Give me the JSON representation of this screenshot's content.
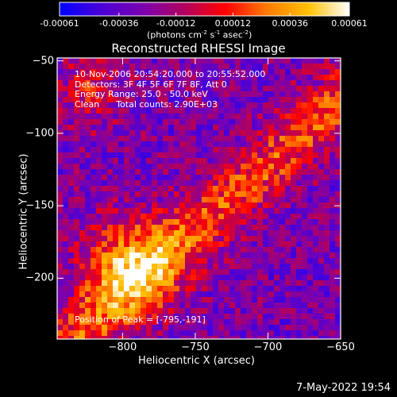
{
  "chart_data": {
    "type": "heatmap",
    "title": "Reconstructed RHESSI Image",
    "xlabel": "Heliocentric X (arcsec)",
    "ylabel": "Heliocentric Y (arcsec)",
    "xlim": [
      -845,
      -650
    ],
    "ylim": [
      -242,
      -48
    ],
    "x_ticks": [
      "-800",
      "-750",
      "-700",
      "-650"
    ],
    "x_tick_values": [
      -800,
      -750,
      -700,
      -650
    ],
    "y_ticks": [
      "-50",
      "-100",
      "-150",
      "-200"
    ],
    "y_tick_values": [
      -50,
      -100,
      -150,
      -200
    ],
    "colorbar": {
      "ticks": [
        "-0.00061",
        "-0.00036",
        "-0.00012",
        "0.00012",
        "0.00036",
        "0.00061"
      ],
      "tick_values": [
        -0.00061,
        -0.00036,
        -0.00012,
        0.00012,
        0.00036,
        0.00061
      ],
      "range": [
        -0.00061,
        0.00061
      ],
      "units": "(photons cm<sup>-2</sup> s<sup>-1</sup> asec<sup>-2</sup>)",
      "colors": [
        "#0000ff",
        "#4a00d8",
        "#7a00b0",
        "#b00060",
        "#ff0000",
        "#ff7a00",
        "#ffc000",
        "#ffffff"
      ]
    },
    "annotations": [
      "10-Nov-2006 20:54:20.000 to 20:55:52.000",
      "Detectors: 3F 4F 5F 6F 7F 8F, Att 0",
      "Energy Range: 25.0 - 50.0 keV",
      "Clean      Total counts: 2.90E+03"
    ],
    "peak_label": "Position of Peak = [-795,-191]",
    "peak": [
      -795,
      -191
    ]
  },
  "footer": {
    "timestamp": "7-May-2022 19:54"
  }
}
